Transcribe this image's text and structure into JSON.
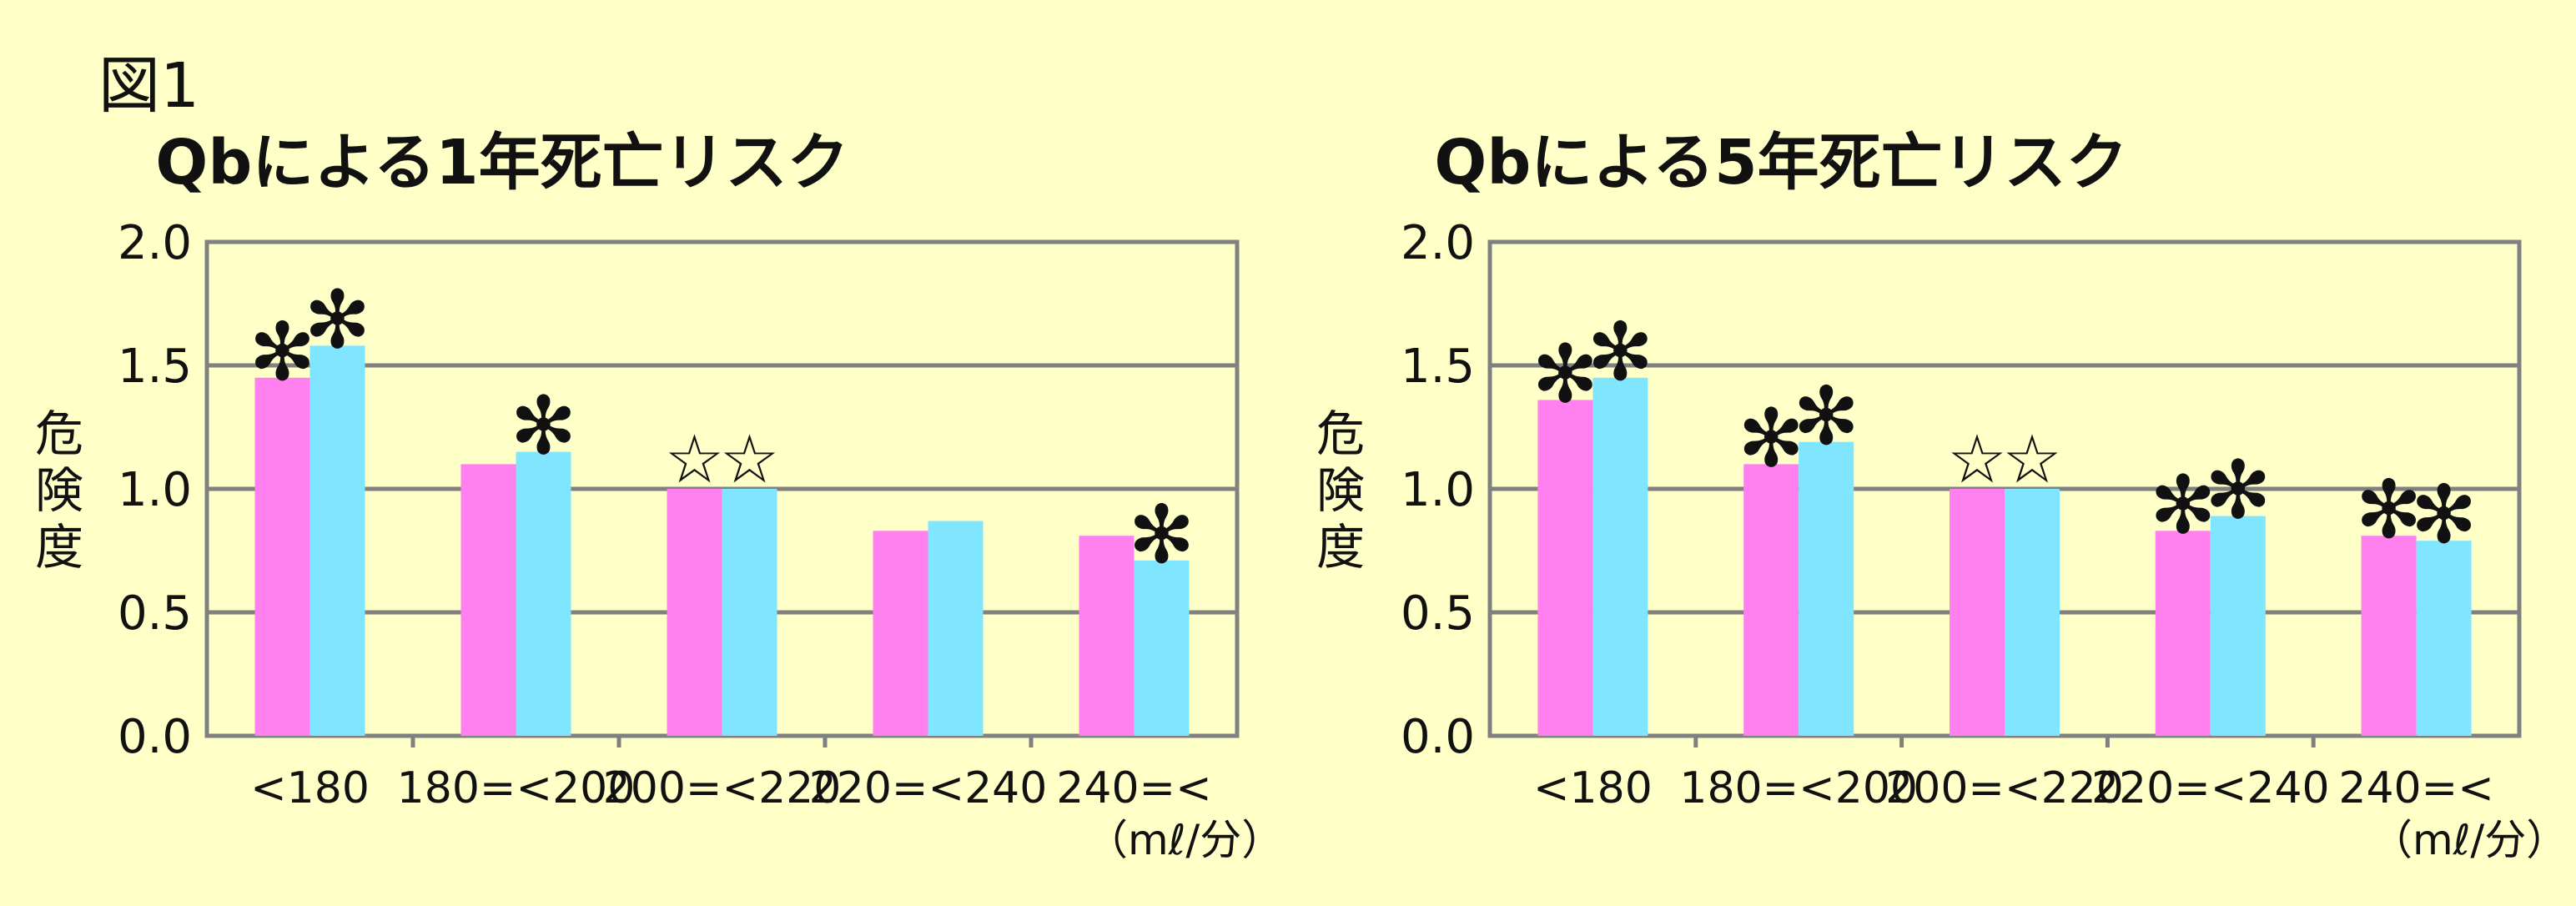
{
  "figure_label": "図1",
  "ylabel": "危険度",
  "unit_label": "（mℓ/分）",
  "colors": {
    "series1": "#ff80ee",
    "series2": "#80e6ff",
    "grid": "#808080",
    "background": "#ffffc8"
  },
  "chart_data": [
    {
      "type": "bar",
      "title": "Qbによる1年死亡リスク",
      "xlabel": "（mℓ/分）",
      "ylabel": "危険度",
      "ylim": [
        0,
        2.0
      ],
      "yticks": [
        "0.0",
        "0.5",
        "1.0",
        "1.5",
        "2.0"
      ],
      "grid": true,
      "categories": [
        "<180",
        "180=<200",
        "200=<220",
        "220=<240",
        "240=<"
      ],
      "series": [
        {
          "values": [
            1.45,
            1.1,
            1.0,
            0.83,
            0.81
          ],
          "markers": [
            "✻",
            "",
            "☆",
            "",
            ""
          ]
        },
        {
          "values": [
            1.58,
            1.15,
            1.0,
            0.87,
            0.71
          ],
          "markers": [
            "✻",
            "✻",
            "☆",
            "",
            "✻"
          ]
        }
      ]
    },
    {
      "type": "bar",
      "title": "Qbによる5年死亡リスク",
      "xlabel": "（mℓ/分）",
      "ylabel": "危険度",
      "ylim": [
        0,
        2.0
      ],
      "yticks": [
        "0.0",
        "0.5",
        "1.0",
        "1.5",
        "2.0"
      ],
      "grid": true,
      "categories": [
        "<180",
        "180=<200",
        "200=<220",
        "220=<240",
        "240=<"
      ],
      "series": [
        {
          "values": [
            1.36,
            1.1,
            1.0,
            0.83,
            0.81
          ],
          "markers": [
            "✻",
            "✻",
            "☆",
            "✻",
            "✻"
          ]
        },
        {
          "values": [
            1.45,
            1.19,
            1.0,
            0.89,
            0.79
          ],
          "markers": [
            "✻",
            "✻",
            "☆",
            "✻",
            "✻"
          ]
        }
      ]
    }
  ]
}
